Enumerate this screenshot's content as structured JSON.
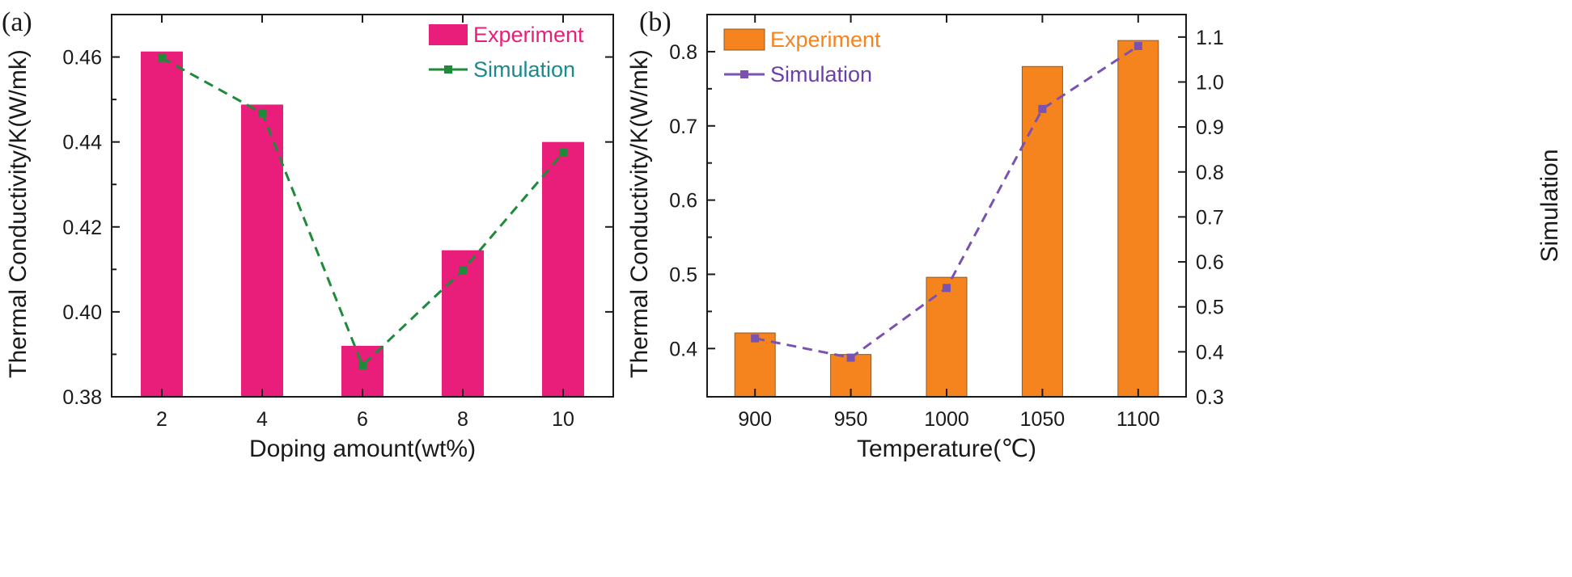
{
  "chart_data": [
    {
      "panel_label": "(a)",
      "type": "bar+line",
      "xlabel": "Doping amount(wt%)",
      "ylabel": "Thermal Conductivity/K(W/mk)",
      "categories": [
        "2",
        "4",
        "6",
        "8",
        "10"
      ],
      "ylim": [
        0.38,
        0.47
      ],
      "yticks": [
        0.38,
        0.4,
        0.42,
        0.44,
        0.46
      ],
      "ytick_labels": [
        "0.38",
        "0.40",
        "0.42",
        "0.44",
        "0.46"
      ],
      "series": [
        {
          "name": "Experiment",
          "kind": "bar",
          "color": "#e91e7a",
          "values": [
            0.4613,
            0.4488,
            0.392,
            0.4145,
            0.44
          ]
        },
        {
          "name": "Simulation",
          "kind": "line",
          "color": "#1e8a3a",
          "legend_text_color": "#1a8a8a",
          "values": [
            0.4598,
            0.4468,
            0.3874,
            0.4098,
            0.4375
          ]
        }
      ],
      "legend_position": "top-right"
    },
    {
      "panel_label": "(b)",
      "type": "bar+line",
      "xlabel": "Temperature(℃)",
      "ylabel": "Thermal Conductivity/K(W/mk)",
      "y2label": "Simulation",
      "categories": [
        "900",
        "950",
        "1000",
        "1050",
        "1100"
      ],
      "ylim": [
        0.335,
        0.85
      ],
      "yticks": [
        0.4,
        0.5,
        0.6,
        0.7,
        0.8
      ],
      "ytick_labels": [
        "0.4",
        "0.5",
        "0.6",
        "0.7",
        "0.8"
      ],
      "y2lim": [
        0.3,
        1.15
      ],
      "y2ticks": [
        0.3,
        0.4,
        0.5,
        0.6,
        0.7,
        0.8,
        0.9,
        1.0,
        1.1
      ],
      "y2tick_labels": [
        "0.3",
        "0.4",
        "0.5",
        "0.6",
        "0.7",
        "0.8",
        "0.9",
        "1.0",
        "1.1"
      ],
      "series": [
        {
          "name": "Experiment",
          "kind": "bar",
          "axis": "left",
          "color": "#f5841f",
          "values": [
            0.421,
            0.392,
            0.496,
            0.78,
            0.815
          ]
        },
        {
          "name": "Simulation",
          "kind": "line",
          "axis": "right",
          "color": "#7a52b0",
          "legend_text_color": "#6a3fa8",
          "values": [
            0.43,
            0.387,
            0.542,
            0.94,
            1.08
          ]
        }
      ],
      "legend_position": "top-left"
    }
  ]
}
